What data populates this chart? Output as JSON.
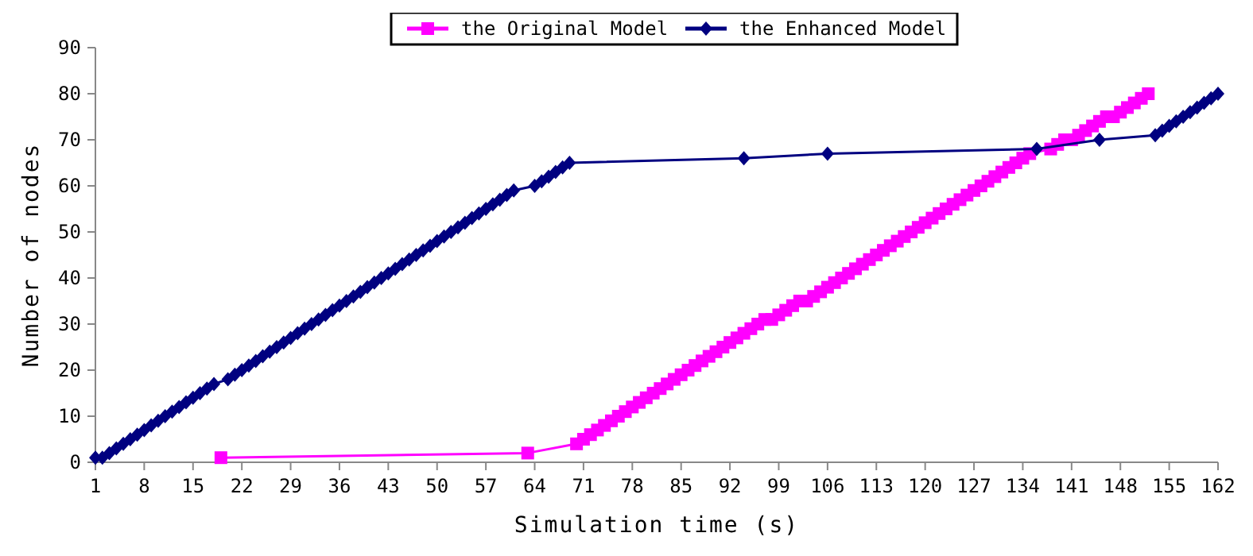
{
  "chart_data": {
    "type": "line",
    "xlabel": "Simulation time (s)",
    "ylabel": "Number of nodes",
    "xlim": [
      1,
      162
    ],
    "xticks": [
      1,
      8,
      15,
      22,
      29,
      36,
      43,
      50,
      57,
      64,
      71,
      78,
      85,
      92,
      99,
      106,
      113,
      120,
      127,
      134,
      141,
      148,
      155,
      162
    ],
    "ylim": [
      0,
      90
    ],
    "yticks": [
      0,
      10,
      20,
      30,
      40,
      50,
      60,
      70,
      80,
      90
    ],
    "grid": false,
    "legend": "top",
    "series": [
      {
        "name": "the Original Model",
        "color": "#ff00ff",
        "marker": "square",
        "x": [
          19,
          63,
          70,
          71,
          72,
          73,
          74,
          75,
          76,
          77,
          78,
          79,
          80,
          81,
          82,
          83,
          84,
          85,
          86,
          87,
          88,
          89,
          90,
          91,
          92,
          93,
          94,
          95,
          96,
          97,
          98,
          99,
          100,
          101,
          102,
          103,
          104,
          105,
          106,
          107,
          108,
          109,
          110,
          111,
          112,
          113,
          114,
          115,
          116,
          117,
          118,
          119,
          120,
          121,
          122,
          123,
          124,
          125,
          126,
          127,
          128,
          129,
          130,
          131,
          132,
          133,
          134,
          135,
          138,
          139,
          140,
          141,
          142,
          143,
          144,
          145,
          146,
          147,
          148,
          149,
          150,
          151,
          152
        ],
        "values": [
          1,
          2,
          4,
          5,
          6,
          7,
          8,
          9,
          10,
          11,
          12,
          13,
          14,
          15,
          16,
          17,
          18,
          19,
          20,
          21,
          22,
          23,
          24,
          25,
          26,
          27,
          28,
          29,
          30,
          31,
          31,
          32,
          33,
          34,
          35,
          35,
          36,
          37,
          38,
          39,
          40,
          41,
          42,
          43,
          44,
          45,
          46,
          47,
          48,
          49,
          50,
          51,
          52,
          53,
          54,
          55,
          56,
          57,
          58,
          59,
          60,
          61,
          62,
          63,
          64,
          65,
          66,
          67,
          68,
          69,
          70,
          70,
          71,
          72,
          73,
          74,
          75,
          75,
          76,
          77,
          78,
          79,
          80
        ]
      },
      {
        "name": "the Enhanced Model",
        "color": "#000080",
        "marker": "diamond",
        "x": [
          1,
          2,
          3,
          4,
          5,
          6,
          7,
          8,
          9,
          10,
          11,
          12,
          13,
          14,
          15,
          16,
          17,
          18,
          20,
          21,
          22,
          23,
          24,
          25,
          26,
          27,
          28,
          29,
          30,
          31,
          32,
          33,
          34,
          35,
          36,
          37,
          38,
          39,
          40,
          41,
          42,
          43,
          44,
          45,
          46,
          47,
          48,
          49,
          50,
          51,
          52,
          53,
          54,
          55,
          56,
          57,
          58,
          59,
          60,
          61,
          64,
          65,
          66,
          67,
          68,
          69,
          94,
          106,
          136,
          145,
          153,
          154,
          155,
          156,
          157,
          158,
          159,
          160,
          161,
          162
        ],
        "values": [
          1,
          1,
          2,
          3,
          4,
          5,
          6,
          7,
          8,
          9,
          10,
          11,
          12,
          13,
          14,
          15,
          16,
          17,
          18,
          19,
          20,
          21,
          22,
          23,
          24,
          25,
          26,
          27,
          28,
          29,
          30,
          31,
          32,
          33,
          34,
          35,
          36,
          37,
          38,
          39,
          40,
          41,
          42,
          43,
          44,
          45,
          46,
          47,
          48,
          49,
          50,
          51,
          52,
          53,
          54,
          55,
          56,
          57,
          58,
          59,
          60,
          61,
          62,
          63,
          64,
          65,
          66,
          67,
          68,
          70,
          71,
          72,
          73,
          74,
          75,
          76,
          77,
          78,
          79,
          80
        ]
      }
    ]
  }
}
